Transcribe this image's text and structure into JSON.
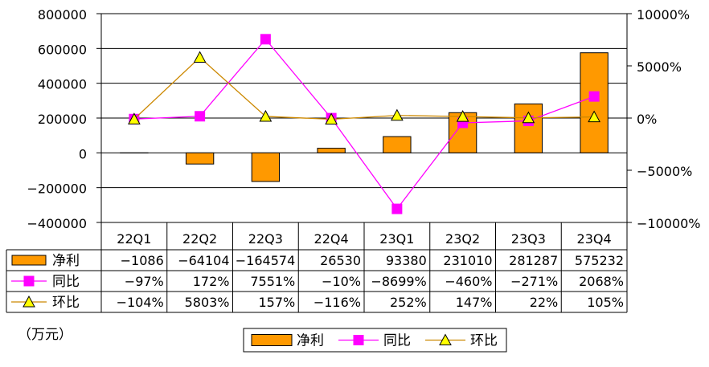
{
  "chart_data": {
    "type": "bar",
    "categories": [
      "22Q1",
      "22Q2",
      "22Q3",
      "22Q4",
      "23Q1",
      "23Q2",
      "23Q3",
      "23Q4"
    ],
    "unit": "（万元）",
    "y_left": {
      "min": -400000,
      "max": 800000,
      "ticks": [
        "800000",
        "600000",
        "400000",
        "200000",
        "0",
        "-200000",
        "-400000"
      ]
    },
    "y_right": {
      "min": -10000,
      "max": 10000,
      "ticks": [
        "10000%",
        "5000%",
        "0%",
        "-5000%",
        "-10000%"
      ]
    },
    "grid": true,
    "legend_position": "bottom",
    "series": [
      {
        "name": "净利",
        "kind": "bar",
        "axis": "left",
        "color": "#FF9900",
        "values": [
          -1086,
          -64104,
          -164574,
          26530,
          93380,
          231010,
          281287,
          575232
        ],
        "labels": [
          "-1086",
          "-64104",
          "-164574",
          "26530",
          "93380",
          "231010",
          "281287",
          "575232"
        ]
      },
      {
        "name": "同比",
        "kind": "line",
        "axis": "right",
        "color": "#FF00FF",
        "marker": "square",
        "values": [
          -97,
          172,
          7551,
          -10,
          -8699,
          -460,
          -271,
          2068
        ],
        "labels": [
          "-97%",
          "172%",
          "7551%",
          "-10%",
          "-8699%",
          "-460%",
          "-271%",
          "2068%"
        ]
      },
      {
        "name": "环比",
        "kind": "line",
        "axis": "right",
        "color": "#FFFF00",
        "line_color": "#CC8800",
        "marker": "triangle",
        "values": [
          -104,
          5803,
          157,
          -116,
          252,
          147,
          22,
          105
        ],
        "labels": [
          "-104%",
          "5803%",
          "157%",
          "-116%",
          "252%",
          "147%",
          "22%",
          "105%"
        ]
      }
    ]
  }
}
